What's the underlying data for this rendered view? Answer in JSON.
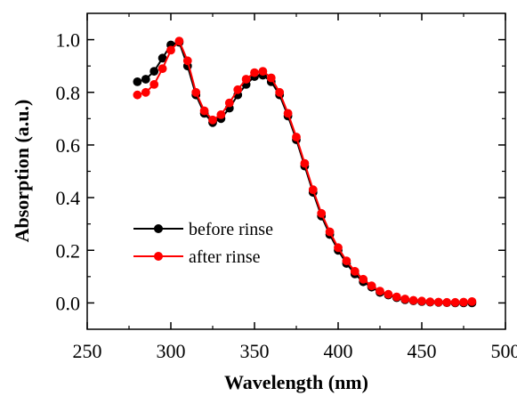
{
  "chart_data": {
    "type": "scatter",
    "xlabel": "Wavelength (nm)",
    "ylabel": "Absorption (a.u.)",
    "xlim": [
      250,
      500
    ],
    "ylim": [
      -0.1,
      1.1
    ],
    "x_ticks": [
      "250",
      "300",
      "350",
      "400",
      "450",
      "500"
    ],
    "y_ticks": [
      "0.0",
      "0.2",
      "0.4",
      "0.6",
      "0.8",
      "1.0"
    ],
    "grid": false,
    "legend_position": "left",
    "series": [
      {
        "name": "before rinse",
        "color": "#000000",
        "points": [
          [
            280,
            0.84
          ],
          [
            285,
            0.85
          ],
          [
            290,
            0.88
          ],
          [
            295,
            0.93
          ],
          [
            300,
            0.98
          ],
          [
            305,
            0.99
          ],
          [
            310,
            0.9
          ],
          [
            315,
            0.79
          ],
          [
            320,
            0.72
          ],
          [
            325,
            0.685
          ],
          [
            330,
            0.7
          ],
          [
            335,
            0.74
          ],
          [
            340,
            0.79
          ],
          [
            345,
            0.83
          ],
          [
            350,
            0.86
          ],
          [
            355,
            0.865
          ],
          [
            360,
            0.84
          ],
          [
            365,
            0.79
          ],
          [
            370,
            0.71
          ],
          [
            375,
            0.62
          ],
          [
            380,
            0.52
          ],
          [
            385,
            0.42
          ],
          [
            390,
            0.33
          ],
          [
            395,
            0.26
          ],
          [
            400,
            0.2
          ],
          [
            405,
            0.15
          ],
          [
            410,
            0.11
          ],
          [
            415,
            0.08
          ],
          [
            420,
            0.06
          ],
          [
            425,
            0.04
          ],
          [
            430,
            0.03
          ],
          [
            435,
            0.02
          ],
          [
            440,
            0.012
          ],
          [
            445,
            0.008
          ],
          [
            450,
            0.005
          ],
          [
            455,
            0.003
          ],
          [
            460,
            0.002
          ],
          [
            465,
            0.001
          ],
          [
            470,
            0.0
          ],
          [
            475,
            0.0
          ],
          [
            480,
            0.0
          ]
        ]
      },
      {
        "name": "after rinse",
        "color": "#ff0000",
        "points": [
          [
            280,
            0.79
          ],
          [
            285,
            0.8
          ],
          [
            290,
            0.83
          ],
          [
            295,
            0.89
          ],
          [
            300,
            0.96
          ],
          [
            305,
            0.995
          ],
          [
            310,
            0.92
          ],
          [
            315,
            0.8
          ],
          [
            320,
            0.73
          ],
          [
            325,
            0.695
          ],
          [
            330,
            0.715
          ],
          [
            335,
            0.76
          ],
          [
            340,
            0.81
          ],
          [
            345,
            0.85
          ],
          [
            350,
            0.875
          ],
          [
            355,
            0.88
          ],
          [
            360,
            0.855
          ],
          [
            365,
            0.8
          ],
          [
            370,
            0.72
          ],
          [
            375,
            0.63
          ],
          [
            380,
            0.53
          ],
          [
            385,
            0.43
          ],
          [
            390,
            0.34
          ],
          [
            395,
            0.27
          ],
          [
            400,
            0.21
          ],
          [
            405,
            0.16
          ],
          [
            410,
            0.12
          ],
          [
            415,
            0.09
          ],
          [
            420,
            0.065
          ],
          [
            425,
            0.045
          ],
          [
            430,
            0.033
          ],
          [
            435,
            0.023
          ],
          [
            440,
            0.015
          ],
          [
            445,
            0.01
          ],
          [
            450,
            0.007
          ],
          [
            455,
            0.004
          ],
          [
            460,
            0.003
          ],
          [
            465,
            0.002
          ],
          [
            470,
            0.002
          ],
          [
            475,
            0.003
          ],
          [
            480,
            0.005
          ]
        ]
      }
    ]
  }
}
